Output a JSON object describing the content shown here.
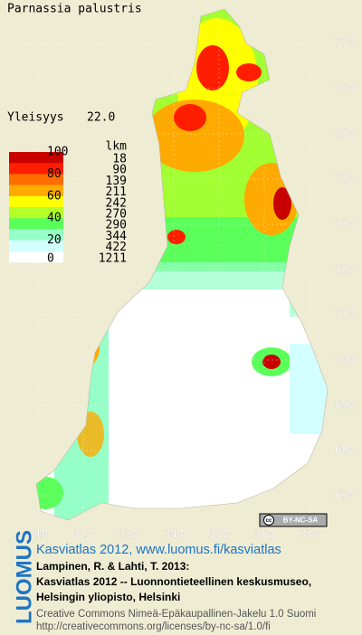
{
  "title": "Parnassia palustris",
  "frequency_label": "Yleisyys",
  "frequency_value": "22.0",
  "legend": {
    "percent_labels": [
      "100",
      "80",
      "60",
      "40",
      "20",
      "0"
    ],
    "count_header": "lkm",
    "entries": [
      {
        "count": "18",
        "color": "#c80000"
      },
      {
        "count": "90",
        "color": "#ff1e00"
      },
      {
        "count": "139",
        "color": "#ff6e00"
      },
      {
        "count": "211",
        "color": "#ffaa00"
      },
      {
        "count": "242",
        "color": "#ffff00"
      },
      {
        "count": "270",
        "color": "#b4ff28"
      },
      {
        "count": "290",
        "color": "#5aff5a"
      },
      {
        "count": "344",
        "color": "#96ffc8"
      },
      {
        "count": "422",
        "color": "#d2ffff"
      },
      {
        "count": "1211",
        "color": "#ffffff"
      }
    ]
  },
  "map": {
    "yticks": [
      770,
      760,
      750,
      740,
      730,
      720,
      710,
      700,
      690,
      680,
      670
    ],
    "xticks": [
      310,
      320,
      330,
      340,
      350,
      360,
      370
    ],
    "license_badge": "BY-NC-SA"
  },
  "footer": {
    "brand": "LUOMUS",
    "link": "Kasviatlas 2012, www.luomus.fi/kasviatlas",
    "citation": [
      "Lampinen, R. & Lahti, T. 2013:",
      "Kasviatlas 2012 -- Luonnontieteellinen keskusmuseo,",
      "Helsingin yliopisto, Helsinki"
    ],
    "license": [
      "Creative Commons Nimeä-Epäkaupallinen-Jakelu 1.0 Suomi",
      "http://creativecommons.org/licenses/by-nc-sa/1.0/fi"
    ]
  }
}
